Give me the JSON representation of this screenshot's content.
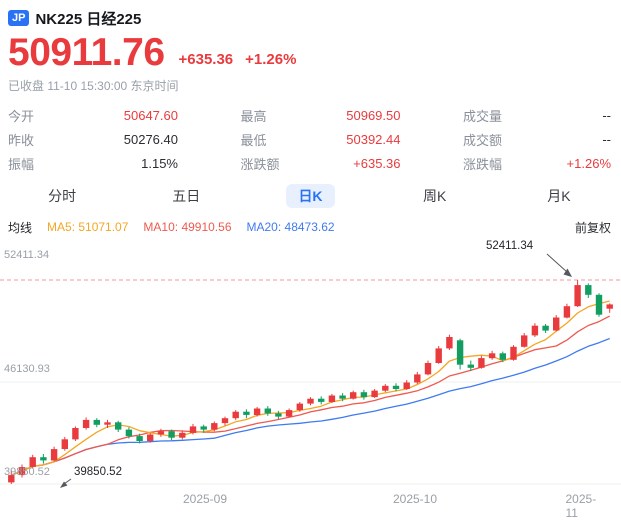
{
  "colors": {
    "up": "#e93b3d",
    "down": "#129e60",
    "ma5": "#f5a623",
    "ma10": "#ee5a4f",
    "ma20": "#3f7bf0",
    "accent": "#2a72f5",
    "accent_bg": "#e8f0fe",
    "high_line": "#f09a9a",
    "grid": "#eef0f2"
  },
  "header": {
    "badge": "JP",
    "title": "NK225 日经225",
    "price": "50911.76",
    "change": "+635.36",
    "change_pct": "+1.26%",
    "status": "已收盘 11-10 15:30:00 东京时间"
  },
  "stats": {
    "cols": [
      {
        "cells": [
          {
            "label": "今开",
            "value": "50647.60"
          },
          {
            "label": "昨收",
            "value": "50276.40"
          },
          {
            "label": "振幅",
            "value": "1.15%"
          }
        ]
      },
      {
        "cells": [
          {
            "label": "最高",
            "value": "50969.50"
          },
          {
            "label": "最低",
            "value": "50392.44"
          },
          {
            "label": "涨跌额",
            "value": "+635.36"
          }
        ]
      },
      {
        "cells": [
          {
            "label": "成交量",
            "value": "--"
          },
          {
            "label": "成交额",
            "value": "--"
          },
          {
            "label": "涨跌幅",
            "value": "+1.26%"
          }
        ]
      }
    ]
  },
  "tabs": {
    "items": [
      "分时",
      "五日",
      "日K",
      "周K",
      "月K"
    ],
    "active": "日K"
  },
  "legend": {
    "title": "均线",
    "ma5": "MA5: 51071.07",
    "ma10": "MA10: 49910.56",
    "ma20": "MA20: 48473.62",
    "adjust": "前复权"
  },
  "chart_data": {
    "type": "candlestick",
    "title": "NK225 日经225 日K",
    "timeframe": "日K",
    "adjust_mode": "前复权",
    "ylim": [
      39850.52,
      52411.34
    ],
    "y_ticks": [
      52411.34,
      46130.93,
      39850.52
    ],
    "x_labels": [
      "2025-09",
      "2025-10",
      "2025-11"
    ],
    "high_annotation": "52411.34",
    "low_annotation": "39850.52",
    "ma_values": {
      "MA5": 51071.07,
      "MA10": 49910.56,
      "MA20": 48473.62
    },
    "last": {
      "open": 50647.6,
      "high": 50969.5,
      "low": 50392.44,
      "close": 50911.76,
      "prev_close": 50276.4
    },
    "candles": [
      [
        39950,
        40700,
        39850.52,
        40400
      ],
      [
        40400,
        41050,
        40250,
        40900
      ],
      [
        40900,
        41650,
        40800,
        41500
      ],
      [
        41500,
        41700,
        41100,
        41300
      ],
      [
        41300,
        42150,
        41250,
        42000
      ],
      [
        42000,
        42750,
        41900,
        42600
      ],
      [
        42600,
        43400,
        42500,
        43300
      ],
      [
        43300,
        43950,
        43200,
        43800
      ],
      [
        43800,
        43900,
        43350,
        43500
      ],
      [
        43500,
        43800,
        43300,
        43650
      ],
      [
        43650,
        43750,
        43050,
        43200
      ],
      [
        43200,
        43350,
        42650,
        42800
      ],
      [
        42800,
        42950,
        42350,
        42500
      ],
      [
        42500,
        43000,
        42400,
        42900
      ],
      [
        42900,
        43250,
        42750,
        43100
      ],
      [
        43100,
        43200,
        42550,
        42700
      ],
      [
        42700,
        43150,
        42600,
        43000
      ],
      [
        43000,
        43550,
        42900,
        43400
      ],
      [
        43400,
        43500,
        43000,
        43200
      ],
      [
        43200,
        43700,
        43100,
        43600
      ],
      [
        43600,
        44000,
        43450,
        43900
      ],
      [
        43900,
        44400,
        43800,
        44300
      ],
      [
        44300,
        44450,
        43900,
        44100
      ],
      [
        44100,
        44600,
        44000,
        44500
      ],
      [
        44500,
        44650,
        44050,
        44200
      ],
      [
        44200,
        44350,
        43850,
        44000
      ],
      [
        44000,
        44500,
        43950,
        44400
      ],
      [
        44400,
        44900,
        44300,
        44800
      ],
      [
        44800,
        45200,
        44700,
        45100
      ],
      [
        45100,
        45250,
        44750,
        44900
      ],
      [
        44900,
        45400,
        44850,
        45300
      ],
      [
        45300,
        45450,
        44950,
        45100
      ],
      [
        45100,
        45600,
        45050,
        45500
      ],
      [
        45500,
        45650,
        45050,
        45200
      ],
      [
        45200,
        45700,
        45150,
        45600
      ],
      [
        45600,
        46000,
        45500,
        45900
      ],
      [
        45900,
        46050,
        45550,
        45700
      ],
      [
        45700,
        46250,
        45650,
        46100
      ],
      [
        46100,
        46750,
        46000,
        46600
      ],
      [
        46600,
        47450,
        46550,
        47300
      ],
      [
        47300,
        48350,
        47250,
        48200
      ],
      [
        48200,
        49050,
        48100,
        48900
      ],
      [
        48700,
        48800,
        46900,
        47200
      ],
      [
        47200,
        47450,
        46800,
        47000
      ],
      [
        47000,
        47750,
        46950,
        47600
      ],
      [
        47600,
        48050,
        47500,
        47900
      ],
      [
        47900,
        48000,
        47350,
        47500
      ],
      [
        47500,
        48400,
        47450,
        48300
      ],
      [
        48300,
        49150,
        48250,
        49000
      ],
      [
        49000,
        49750,
        48900,
        49600
      ],
      [
        49600,
        49700,
        49150,
        49300
      ],
      [
        49300,
        50250,
        49250,
        50100
      ],
      [
        50100,
        50950,
        50050,
        50800
      ],
      [
        50800,
        52411.34,
        50750,
        52100
      ],
      [
        52100,
        52200,
        51300,
        51500
      ],
      [
        51500,
        51600,
        50150,
        50276.4
      ],
      [
        50647.6,
        50969.5,
        50392.44,
        50911.76
      ]
    ]
  }
}
